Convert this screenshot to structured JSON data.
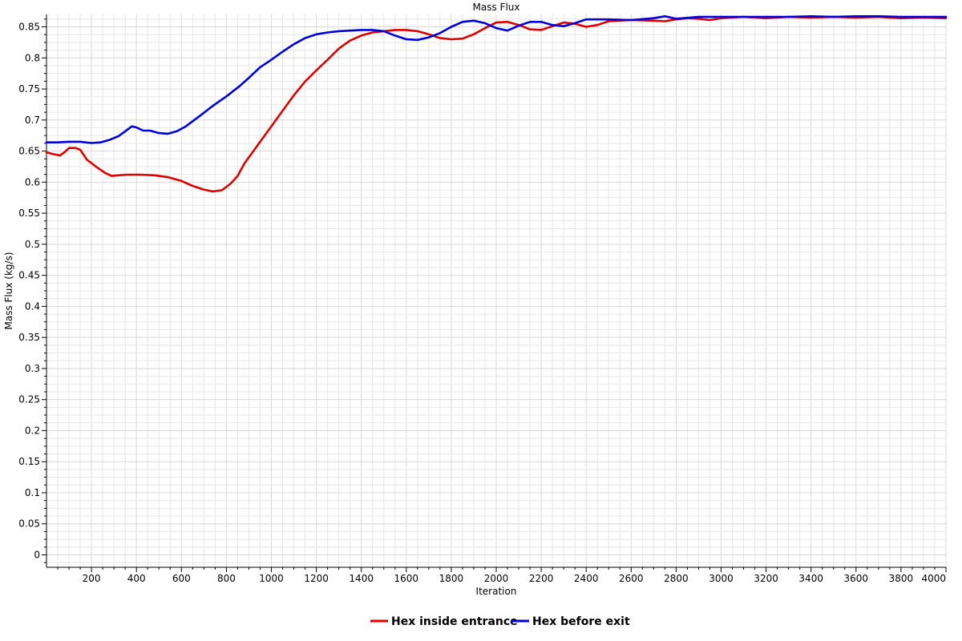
{
  "chart_data": {
    "type": "line",
    "title": "Mass Flux",
    "xlabel": "Iteration",
    "ylabel": "Mass Flux (kg/s)",
    "xlim": [
      0,
      4000
    ],
    "ylim": [
      -0.02,
      0.87
    ],
    "x_ticks": [
      200,
      400,
      600,
      800,
      1000,
      1200,
      1400,
      1600,
      1800,
      2000,
      2200,
      2400,
      2600,
      2800,
      3000,
      3200,
      3400,
      3600,
      3800,
      4000
    ],
    "y_ticks": [
      0,
      0.05,
      0.1,
      0.15,
      0.2,
      0.25,
      0.3,
      0.35,
      0.4,
      0.45,
      0.5,
      0.55,
      0.6,
      0.65,
      0.7,
      0.75,
      0.8,
      0.85
    ],
    "grid": true,
    "legend_position": "bottom-center",
    "series": [
      {
        "name": "Hex inside entrance",
        "color": "#e00000",
        "x": [
          0,
          30,
          60,
          80,
          100,
          130,
          150,
          180,
          220,
          260,
          290,
          320,
          360,
          420,
          480,
          540,
          600,
          650,
          700,
          740,
          780,
          820,
          850,
          880,
          950,
          1000,
          1050,
          1100,
          1150,
          1200,
          1250,
          1300,
          1350,
          1400,
          1450,
          1500,
          1550,
          1600,
          1650,
          1700,
          1750,
          1800,
          1850,
          1900,
          1950,
          2000,
          2050,
          2100,
          2150,
          2200,
          2250,
          2300,
          2350,
          2400,
          2450,
          2500,
          2600,
          2700,
          2750,
          2800,
          2850,
          2900,
          2950,
          3000,
          3100,
          3200,
          3300,
          3400,
          3500,
          3600,
          3700,
          3800,
          3900,
          4000
        ],
        "values": [
          0.648,
          0.645,
          0.643,
          0.648,
          0.655,
          0.655,
          0.652,
          0.636,
          0.625,
          0.615,
          0.61,
          0.611,
          0.612,
          0.612,
          0.611,
          0.608,
          0.602,
          0.594,
          0.588,
          0.585,
          0.587,
          0.598,
          0.61,
          0.63,
          0.665,
          0.69,
          0.715,
          0.74,
          0.762,
          0.78,
          0.797,
          0.815,
          0.828,
          0.836,
          0.841,
          0.843,
          0.845,
          0.845,
          0.843,
          0.838,
          0.832,
          0.83,
          0.831,
          0.838,
          0.848,
          0.857,
          0.858,
          0.853,
          0.846,
          0.845,
          0.851,
          0.857,
          0.855,
          0.85,
          0.853,
          0.859,
          0.861,
          0.86,
          0.859,
          0.862,
          0.864,
          0.863,
          0.861,
          0.864,
          0.866,
          0.864,
          0.866,
          0.865,
          0.866,
          0.865,
          0.866,
          0.864,
          0.865,
          0.864
        ]
      },
      {
        "name": "Hex before exit",
        "color": "#0000dd",
        "x": [
          0,
          50,
          100,
          150,
          200,
          240,
          280,
          320,
          350,
          380,
          400,
          430,
          460,
          500,
          540,
          580,
          620,
          680,
          740,
          800,
          860,
          900,
          950,
          1000,
          1050,
          1100,
          1150,
          1200,
          1250,
          1300,
          1350,
          1400,
          1450,
          1500,
          1550,
          1600,
          1650,
          1700,
          1750,
          1800,
          1850,
          1900,
          1950,
          2000,
          2050,
          2100,
          2150,
          2200,
          2250,
          2300,
          2350,
          2400,
          2450,
          2500,
          2600,
          2700,
          2750,
          2800,
          2900,
          3000,
          3100,
          3200,
          3300,
          3400,
          3500,
          3600,
          3700,
          3800,
          3900,
          4000
        ],
        "values": [
          0.664,
          0.664,
          0.665,
          0.665,
          0.663,
          0.664,
          0.668,
          0.674,
          0.682,
          0.69,
          0.688,
          0.683,
          0.683,
          0.679,
          0.678,
          0.682,
          0.69,
          0.706,
          0.723,
          0.738,
          0.755,
          0.768,
          0.785,
          0.797,
          0.81,
          0.822,
          0.832,
          0.838,
          0.841,
          0.843,
          0.844,
          0.845,
          0.845,
          0.843,
          0.836,
          0.83,
          0.829,
          0.833,
          0.84,
          0.85,
          0.858,
          0.86,
          0.856,
          0.848,
          0.844,
          0.852,
          0.858,
          0.858,
          0.853,
          0.851,
          0.856,
          0.862,
          0.862,
          0.862,
          0.861,
          0.864,
          0.867,
          0.863,
          0.866,
          0.866,
          0.866,
          0.866,
          0.866,
          0.867,
          0.866,
          0.867,
          0.867,
          0.866,
          0.866,
          0.866
        ]
      }
    ]
  }
}
